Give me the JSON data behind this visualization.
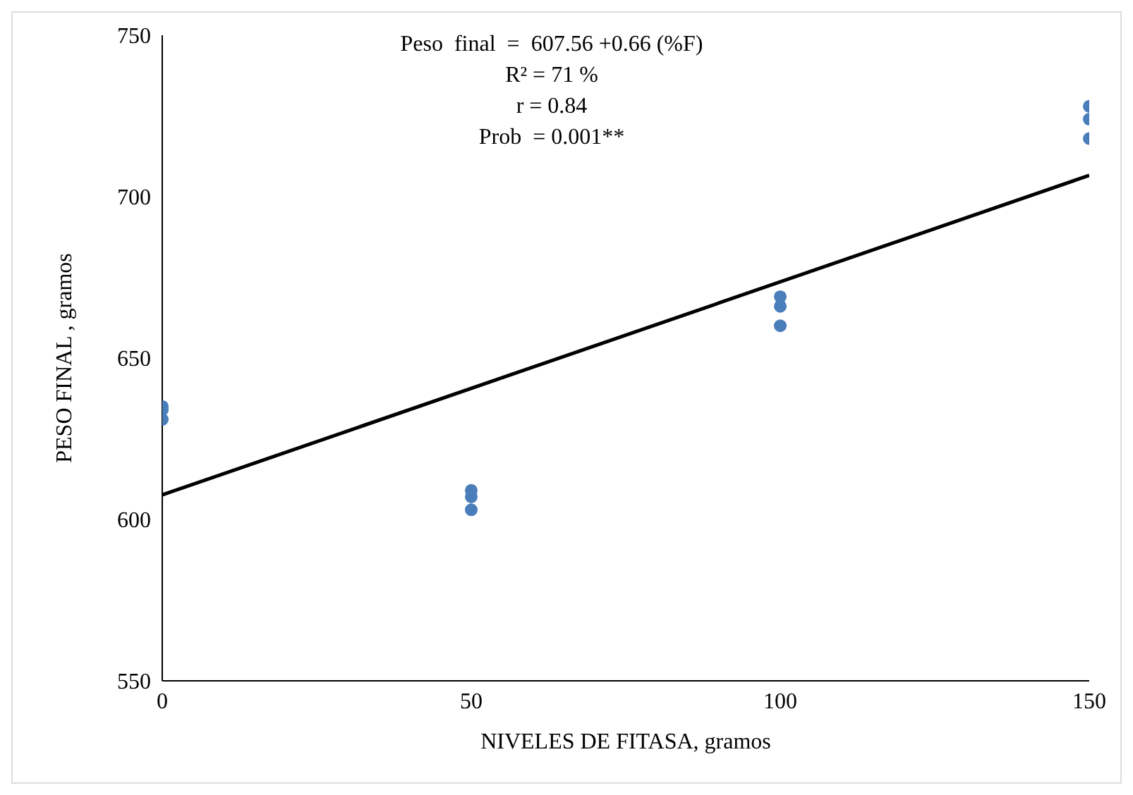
{
  "chart_data": {
    "type": "scatter",
    "xlabel": "NIVELES DE FITASA, gramos",
    "ylabel": "PESO FINAL  , gramos",
    "series": [
      {
        "color": "#4a7ebb",
        "marker": "circle",
        "x": [
          0,
          0,
          0,
          50,
          50,
          50,
          100,
          100,
          100,
          150,
          150,
          150
        ],
        "values": [
          635,
          634,
          631,
          609,
          607,
          603,
          669,
          666,
          660,
          728,
          724,
          718
        ]
      },
      {
        "type": "line",
        "color": "#000000",
        "x": [
          0,
          150
        ],
        "values": [
          607.6,
          706.6
        ]
      }
    ],
    "xlim": [
      0,
      150
    ],
    "xticks": [
      0,
      50,
      100,
      150
    ],
    "ylim": [
      550,
      750
    ],
    "yticks": [
      550,
      600,
      650,
      700,
      750
    ],
    "grid": false,
    "legend": false,
    "annotations": [
      "Peso  final  =  607.56 +0.66 (%F)",
      "R² = 71 %",
      "r = 0.84",
      "Prob  = 0.001**"
    ]
  }
}
